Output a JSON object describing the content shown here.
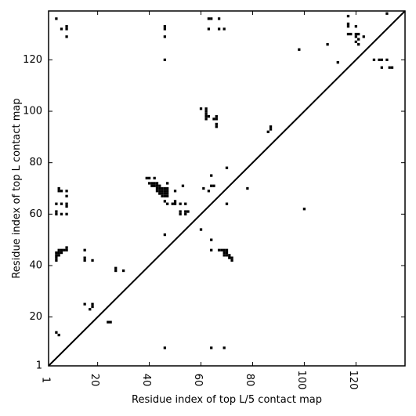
{
  "chart_data": {
    "type": "scatter",
    "title": "",
    "xlabel": "Residue index of top L/5 contact map",
    "ylabel": "Residue index of top L contact map",
    "xlim": [
      1,
      139
    ],
    "ylim": [
      1,
      139
    ],
    "x_ticks": [
      1,
      20,
      40,
      60,
      80,
      100,
      120
    ],
    "y_ticks": [
      1,
      20,
      40,
      60,
      80,
      100,
      120
    ],
    "grid": false,
    "legend": "none",
    "diagonal_line": true,
    "colors": {
      "points": "#000000",
      "line": "#000000",
      "background": "#ffffff"
    },
    "series": [
      {
        "points": [
          [
            4,
            136
          ],
          [
            6,
            132
          ],
          [
            8,
            133
          ],
          [
            8,
            132
          ],
          [
            8,
            129
          ],
          [
            46,
            133
          ],
          [
            46,
            132
          ],
          [
            46,
            129
          ],
          [
            46,
            120
          ],
          [
            63,
            136
          ],
          [
            64,
            136
          ],
          [
            67,
            136
          ],
          [
            63,
            132
          ],
          [
            67,
            132
          ],
          [
            69,
            132
          ],
          [
            117,
            137
          ],
          [
            117,
            134
          ],
          [
            117,
            133
          ],
          [
            120,
            133
          ],
          [
            117,
            130
          ],
          [
            118,
            130
          ],
          [
            120,
            130
          ],
          [
            121,
            130
          ],
          [
            123,
            129
          ],
          [
            120,
            129
          ],
          [
            121,
            128
          ],
          [
            120,
            127
          ],
          [
            121,
            126
          ],
          [
            109,
            126
          ],
          [
            98,
            124
          ],
          [
            113,
            119
          ],
          [
            127,
            120
          ],
          [
            129,
            120
          ],
          [
            130,
            120
          ],
          [
            132,
            120
          ],
          [
            130,
            117
          ],
          [
            133,
            117
          ],
          [
            134,
            117
          ],
          [
            132,
            138
          ],
          [
            60,
            101
          ],
          [
            62,
            101
          ],
          [
            62,
            100
          ],
          [
            62,
            99
          ],
          [
            62,
            98
          ],
          [
            63,
            98
          ],
          [
            62,
            97
          ],
          [
            65,
            97
          ],
          [
            66,
            98
          ],
          [
            66,
            97
          ],
          [
            66,
            95
          ],
          [
            66,
            94
          ],
          [
            87,
            94
          ],
          [
            87,
            93
          ],
          [
            86,
            92
          ],
          [
            70,
            78
          ],
          [
            64,
            75
          ],
          [
            39,
            74
          ],
          [
            40,
            74
          ],
          [
            42,
            74
          ],
          [
            40,
            72
          ],
          [
            41,
            72
          ],
          [
            42,
            72
          ],
          [
            43,
            72
          ],
          [
            41,
            71
          ],
          [
            42,
            71
          ],
          [
            43,
            71
          ],
          [
            44,
            71
          ],
          [
            47,
            72
          ],
          [
            43,
            70
          ],
          [
            44,
            70
          ],
          [
            45,
            70
          ],
          [
            46,
            70
          ],
          [
            47,
            70
          ],
          [
            43,
            69
          ],
          [
            44,
            69
          ],
          [
            45,
            69
          ],
          [
            46,
            69
          ],
          [
            47,
            69
          ],
          [
            44,
            68
          ],
          [
            45,
            68
          ],
          [
            46,
            68
          ],
          [
            47,
            68
          ],
          [
            45,
            67
          ],
          [
            46,
            67
          ],
          [
            47,
            67
          ],
          [
            50,
            69
          ],
          [
            53,
            71
          ],
          [
            61,
            70
          ],
          [
            63,
            69
          ],
          [
            64,
            71
          ],
          [
            65,
            71
          ],
          [
            46,
            65
          ],
          [
            47,
            64
          ],
          [
            49,
            64
          ],
          [
            50,
            64
          ],
          [
            50,
            65
          ],
          [
            52,
            64
          ],
          [
            54,
            64
          ],
          [
            52,
            61
          ],
          [
            52,
            60
          ],
          [
            54,
            61
          ],
          [
            54,
            60
          ],
          [
            55,
            61
          ],
          [
            5,
            70
          ],
          [
            5,
            69
          ],
          [
            6,
            69
          ],
          [
            8,
            69
          ],
          [
            8,
            67
          ],
          [
            8,
            64
          ],
          [
            8,
            63
          ],
          [
            6,
            64
          ],
          [
            4,
            64
          ],
          [
            4,
            61
          ],
          [
            4,
            60
          ],
          [
            6,
            60
          ],
          [
            8,
            60
          ],
          [
            70,
            64
          ],
          [
            78,
            70
          ],
          [
            100,
            62
          ],
          [
            60,
            54
          ],
          [
            46,
            52
          ],
          [
            64,
            50
          ],
          [
            5,
            46
          ],
          [
            6,
            46
          ],
          [
            7,
            46
          ],
          [
            8,
            47
          ],
          [
            4,
            45
          ],
          [
            5,
            45
          ],
          [
            6,
            45
          ],
          [
            8,
            46
          ],
          [
            4,
            44
          ],
          [
            5,
            44
          ],
          [
            4,
            43
          ],
          [
            4,
            42
          ],
          [
            15,
            46
          ],
          [
            15,
            43
          ],
          [
            15,
            42
          ],
          [
            18,
            42
          ],
          [
            27,
            39
          ],
          [
            27,
            38
          ],
          [
            30,
            38
          ],
          [
            64,
            46
          ],
          [
            67,
            46
          ],
          [
            68,
            46
          ],
          [
            69,
            46
          ],
          [
            70,
            46
          ],
          [
            69,
            45
          ],
          [
            70,
            45
          ],
          [
            69,
            44
          ],
          [
            70,
            44
          ],
          [
            71,
            44
          ],
          [
            71,
            43
          ],
          [
            72,
            43
          ],
          [
            72,
            42
          ],
          [
            15,
            25
          ],
          [
            18,
            25
          ],
          [
            18,
            24
          ],
          [
            17,
            23
          ],
          [
            24,
            18
          ],
          [
            25,
            18
          ],
          [
            4,
            14
          ],
          [
            5,
            13
          ],
          [
            46,
            8
          ],
          [
            64,
            8
          ],
          [
            69,
            8
          ]
        ]
      }
    ]
  }
}
